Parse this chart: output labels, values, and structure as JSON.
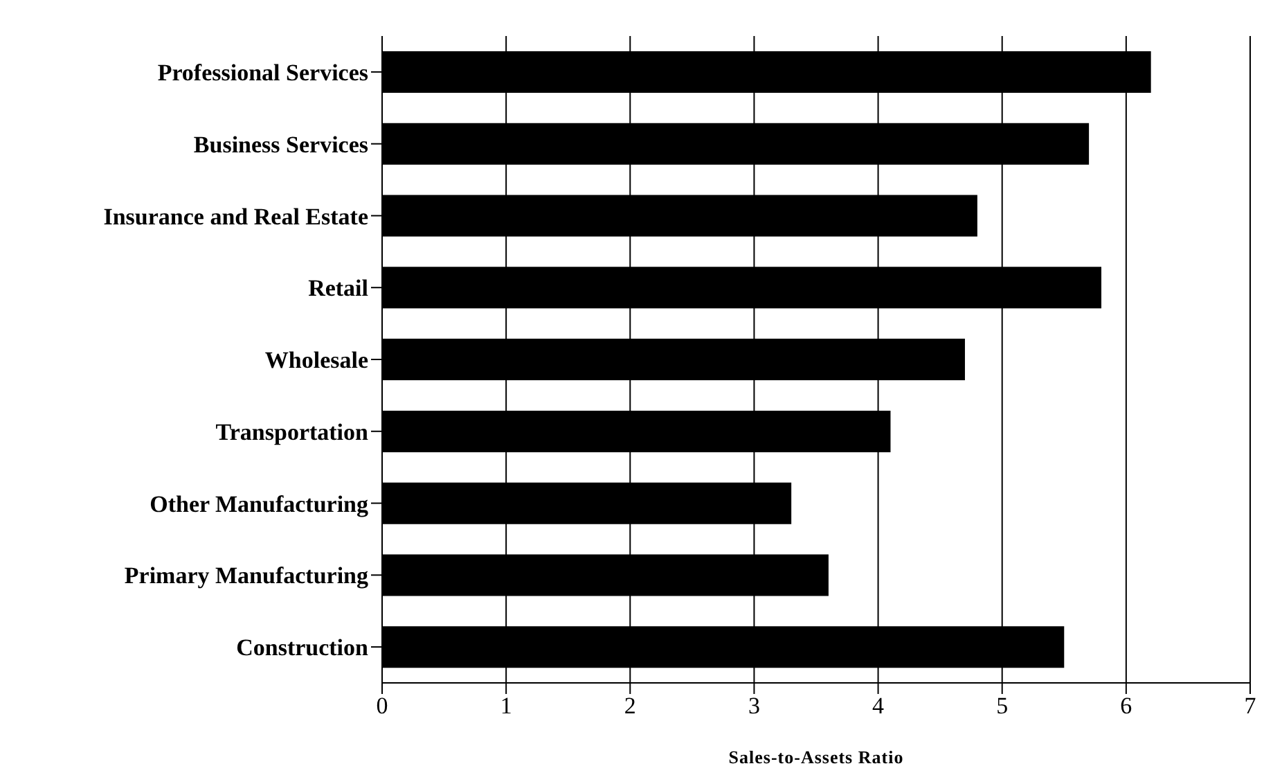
{
  "chart_data": {
    "type": "bar",
    "orientation": "horizontal",
    "xlabel": "Sales-to-Assets Ratio",
    "categories": [
      "Professional Services",
      "Business Services",
      "Insurance and Real Estate",
      "Retail",
      "Wholesale",
      "Transportation",
      "Other Manufacturing",
      "Primary Manufacturing",
      "Construction"
    ],
    "values": [
      6.2,
      5.7,
      4.8,
      5.8,
      4.7,
      4.1,
      3.3,
      3.6,
      5.5
    ],
    "color": "#000000",
    "xlim": [
      0,
      7
    ],
    "xticks": [
      0,
      1,
      2,
      3,
      4,
      5,
      6,
      7
    ],
    "grid": "x"
  }
}
